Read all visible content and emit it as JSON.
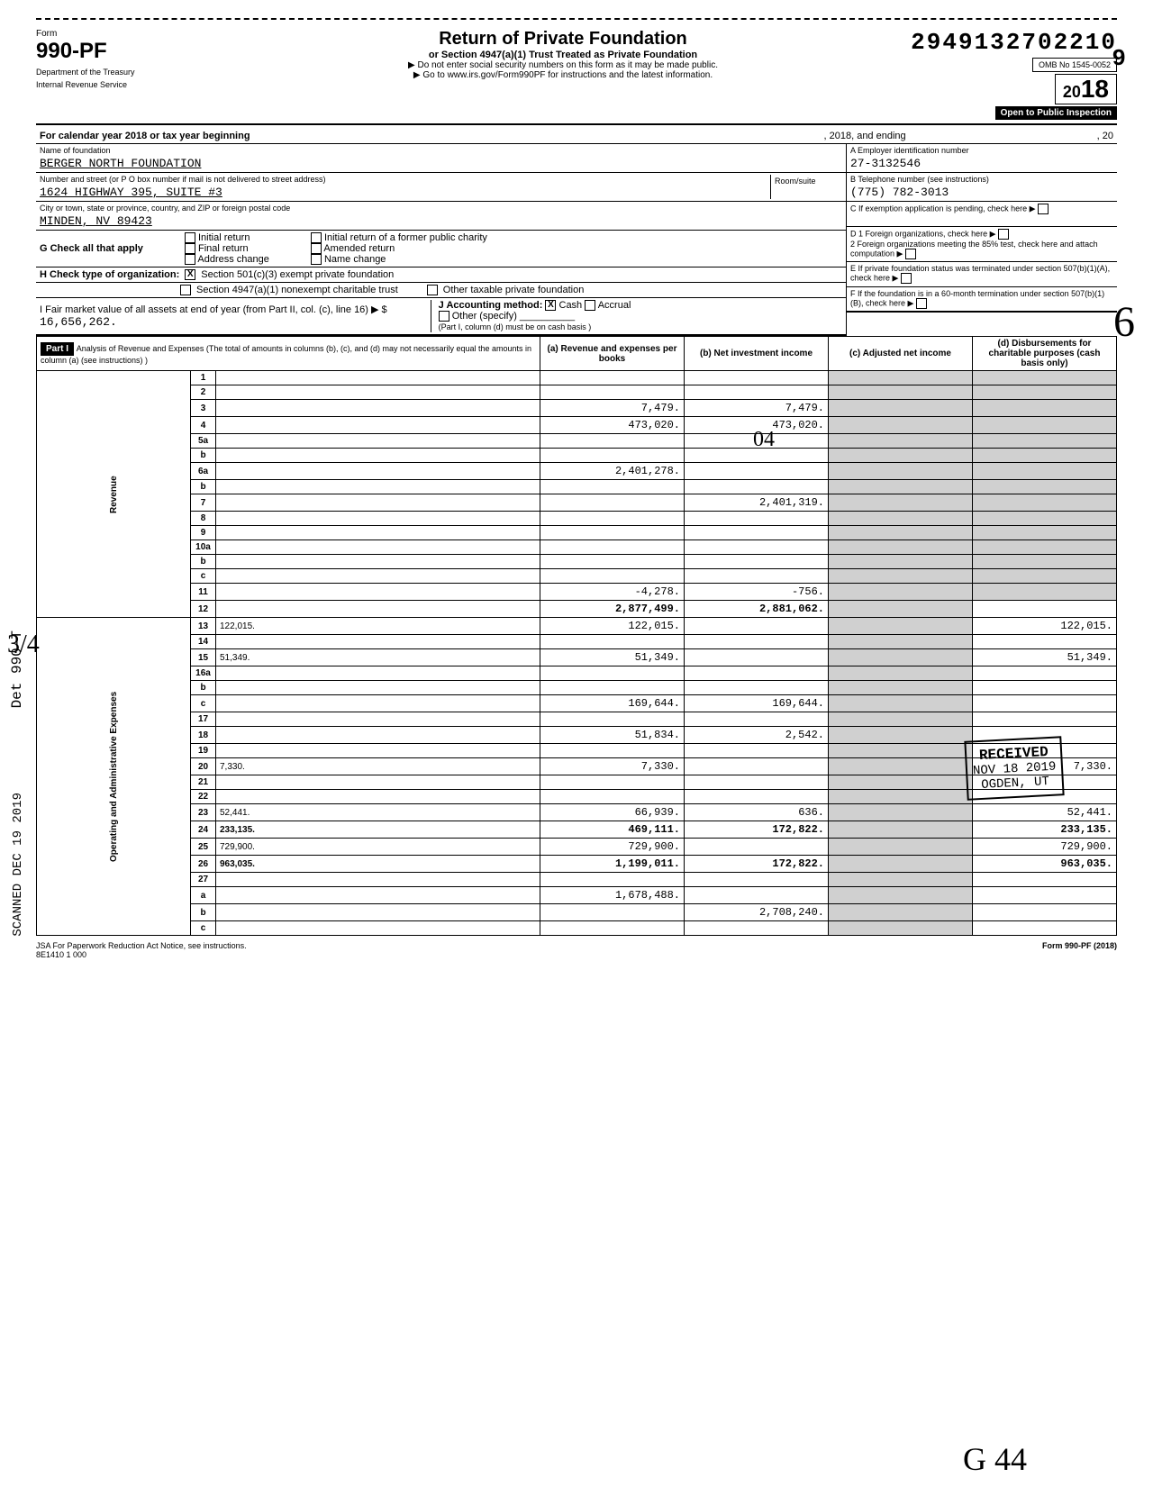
{
  "header": {
    "form_number": "990-PF",
    "dept1": "Department of the Treasury",
    "dept2": "Internal Revenue Service",
    "title": "Return of Private Foundation",
    "subtitle": "or Section 4947(a)(1) Trust Treated as Private Foundation",
    "warning": "▶ Do not enter social security numbers on this form as it may be made public.",
    "goto": "▶ Go to www.irs.gov/Form990PF for instructions and the latest information.",
    "dln": "29491327022109",
    "dln_main": "2949132702210",
    "dln_suffix": "9",
    "omb": "OMB No 1545-0052",
    "year": "2018",
    "year_prefix": "20",
    "year_suffix": "18",
    "inspection": "Open to Public Inspection"
  },
  "calendar_line": "For calendar year 2018 or tax year beginning",
  "calendar_mid": ", 2018, and ending",
  "calendar_end": ", 20",
  "foundation": {
    "name_label": "Name of foundation",
    "name": "BERGER NORTH FOUNDATION",
    "addr_label": "Number and street (or P O box number if mail is not delivered to street address)",
    "addr": "1624 HIGHWAY 395, SUITE #3",
    "room_label": "Room/suite",
    "city_label": "City or town, state or province, country, and ZIP or foreign postal code",
    "city": "MINDEN, NV 89423"
  },
  "boxA": {
    "label": "A  Employer identification number",
    "value": "27-3132546"
  },
  "boxB": {
    "label": "B  Telephone number (see instructions)",
    "value": "(775) 782-3013"
  },
  "boxC": {
    "label": "C  If exemption application is pending, check here"
  },
  "boxD": {
    "d1": "D  1  Foreign organizations, check here",
    "d2": "2  Foreign organizations meeting the 85% test, check here and attach computation"
  },
  "boxE": "E  If private foundation status was terminated under section 507(b)(1)(A), check here",
  "boxF": "F  If the foundation is in a 60-month termination under section 507(b)(1)(B), check here",
  "checkG": {
    "label": "G  Check all that apply",
    "opts": [
      "Initial return",
      "Final return",
      "Address change",
      "Initial return of a former public charity",
      "Amended return",
      "Name change"
    ]
  },
  "checkH": {
    "label": "H  Check type of organization:",
    "opt1": "Section 501(c)(3) exempt private foundation",
    "opt2": "Section 4947(a)(1) nonexempt charitable trust",
    "opt3": "Other taxable private foundation"
  },
  "lineI": {
    "label": "I  Fair market value of all assets at end of year (from Part II, col. (c), line 16) ▶ $",
    "value": "16,656,262."
  },
  "lineJ": {
    "label": "J  Accounting method:",
    "cash": "Cash",
    "accrual": "Accrual",
    "other": "Other (specify)",
    "note": "(Part I, column (d) must be on cash basis )"
  },
  "part1": {
    "header": "Part I",
    "title": "Analysis of Revenue and Expenses (The total of amounts in columns (b), (c), and (d) may not necessarily equal the amounts in column (a) (see instructions) )",
    "col_a": "(a) Revenue and expenses per books",
    "col_b": "(b) Net investment income",
    "col_c": "(c) Adjusted net income",
    "col_d": "(d) Disbursements for charitable purposes (cash basis only)"
  },
  "side_labels": {
    "revenue": "Revenue",
    "expenses": "Operating and Administrative Expenses"
  },
  "rows": [
    {
      "n": "1",
      "d": "",
      "a": "",
      "b": "",
      "c": ""
    },
    {
      "n": "2",
      "d": "",
      "a": "",
      "b": "",
      "c": ""
    },
    {
      "n": "3",
      "d": "",
      "a": "7,479.",
      "b": "7,479.",
      "c": ""
    },
    {
      "n": "4",
      "d": "",
      "a": "473,020.",
      "b": "473,020.",
      "c": ""
    },
    {
      "n": "5a",
      "d": "",
      "a": "",
      "b": "",
      "c": ""
    },
    {
      "n": "b",
      "d": "",
      "a": "",
      "b": "",
      "c": ""
    },
    {
      "n": "6a",
      "d": "",
      "a": "2,401,278.",
      "b": "",
      "c": ""
    },
    {
      "n": "b",
      "d": "",
      "a": "",
      "b": "",
      "c": ""
    },
    {
      "n": "7",
      "d": "",
      "a": "",
      "b": "2,401,319.",
      "c": ""
    },
    {
      "n": "8",
      "d": "",
      "a": "",
      "b": "",
      "c": ""
    },
    {
      "n": "9",
      "d": "",
      "a": "",
      "b": "",
      "c": ""
    },
    {
      "n": "10a",
      "d": "",
      "a": "",
      "b": "",
      "c": ""
    },
    {
      "n": "b",
      "d": "",
      "a": "",
      "b": "",
      "c": ""
    },
    {
      "n": "c",
      "d": "",
      "a": "",
      "b": "",
      "c": ""
    },
    {
      "n": "11",
      "d": "",
      "a": "-4,278.",
      "b": "-756.",
      "c": ""
    },
    {
      "n": "12",
      "d": "",
      "a": "2,877,499.",
      "b": "2,881,062.",
      "c": "",
      "bold": true
    },
    {
      "n": "13",
      "d": "122,015.",
      "a": "122,015.",
      "b": "",
      "c": ""
    },
    {
      "n": "14",
      "d": "",
      "a": "",
      "b": "",
      "c": ""
    },
    {
      "n": "15",
      "d": "51,349.",
      "a": "51,349.",
      "b": "",
      "c": ""
    },
    {
      "n": "16a",
      "d": "",
      "a": "",
      "b": "",
      "c": ""
    },
    {
      "n": "b",
      "d": "",
      "a": "",
      "b": "",
      "c": ""
    },
    {
      "n": "c",
      "d": "",
      "a": "169,644.",
      "b": "169,644.",
      "c": ""
    },
    {
      "n": "17",
      "d": "",
      "a": "",
      "b": "",
      "c": ""
    },
    {
      "n": "18",
      "d": "",
      "a": "51,834.",
      "b": "2,542.",
      "c": ""
    },
    {
      "n": "19",
      "d": "",
      "a": "",
      "b": "",
      "c": ""
    },
    {
      "n": "20",
      "d": "7,330.",
      "a": "7,330.",
      "b": "",
      "c": ""
    },
    {
      "n": "21",
      "d": "",
      "a": "",
      "b": "",
      "c": ""
    },
    {
      "n": "22",
      "d": "",
      "a": "",
      "b": "",
      "c": ""
    },
    {
      "n": "23",
      "d": "52,441.",
      "a": "66,939.",
      "b": "636.",
      "c": ""
    },
    {
      "n": "24",
      "d": "233,135.",
      "a": "469,111.",
      "b": "172,822.",
      "c": "",
      "bold": true
    },
    {
      "n": "25",
      "d": "729,900.",
      "a": "729,900.",
      "b": "",
      "c": ""
    },
    {
      "n": "26",
      "d": "963,035.",
      "a": "1,199,011.",
      "b": "172,822.",
      "c": "",
      "bold": true
    },
    {
      "n": "27",
      "d": "",
      "a": "",
      "b": "",
      "c": ""
    },
    {
      "n": "a",
      "d": "",
      "a": "1,678,488.",
      "b": "",
      "c": ""
    },
    {
      "n": "b",
      "d": "",
      "a": "",
      "b": "2,708,240.",
      "c": ""
    },
    {
      "n": "c",
      "d": "",
      "a": "",
      "b": "",
      "c": ""
    }
  ],
  "footer": {
    "left1": "JSA",
    "left2": "For Paperwork Reduction Act Notice, see instructions.",
    "left3": "8E1410 1 000",
    "right": "Form 990-PF (2018)"
  },
  "stamps": {
    "received": "RECEIVED",
    "rec_date": "NOV 18 2019",
    "rec_loc": "OGDEN, UT",
    "scanned": "SCANNED DEC 19 2019",
    "det": "Det 990-T",
    "hand34": "3/4",
    "hand04": "04",
    "big6": "6",
    "hand_bottom": "G 44"
  }
}
